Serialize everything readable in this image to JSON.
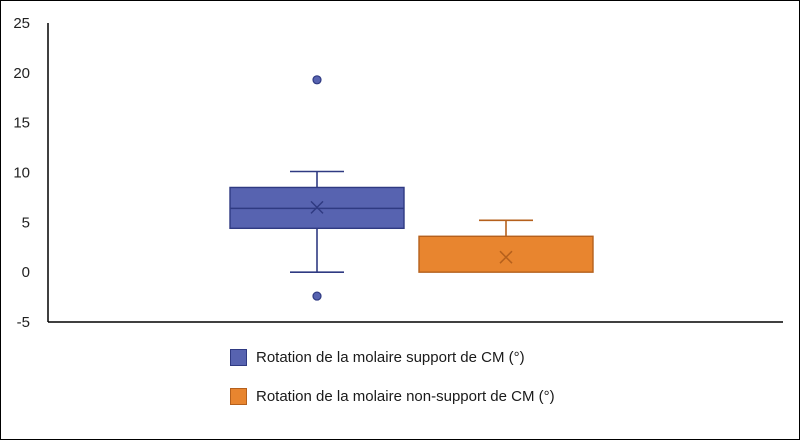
{
  "chart_data": {
    "type": "box",
    "title": "",
    "xlabel": "",
    "ylabel": "",
    "ylim": [
      -5,
      25
    ],
    "yticks": [
      "25",
      "20",
      "15",
      "10",
      "5",
      "0",
      "-5"
    ],
    "grid": false,
    "legend_position": "bottom",
    "series": [
      {
        "name": "Rotation de la molaire support de CM (°)",
        "color": "#5763b0",
        "stroke": "#2f3a82",
        "whisker_low": 0,
        "q1": 4.4,
        "median": 6.4,
        "q3": 8.5,
        "whisker_high": 10.1,
        "mean": 6.5,
        "outliers": [
          19.3,
          -2.4
        ]
      },
      {
        "name": "Rotation de la molaire non-support de CM (°)",
        "color": "#e8852f",
        "stroke": "#b5601c",
        "whisker_low": 0,
        "q1": 0,
        "median": 0,
        "q3": 3.6,
        "whisker_high": 5.2,
        "mean": 1.5,
        "outliers": []
      }
    ]
  }
}
